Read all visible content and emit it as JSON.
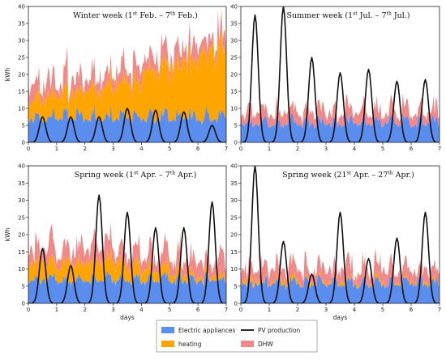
{
  "chart_data": [
    {
      "type": "area",
      "title_parts": [
        "Winter week (1",
        "st",
        " Feb. – 7",
        "th",
        " Feb.)"
      ],
      "ylabel": "kWh",
      "xlabel": "",
      "xlim": [
        0,
        7
      ],
      "ylim": [
        0,
        40
      ],
      "xticks": [
        "0",
        "1",
        "2",
        "3",
        "4",
        "5",
        "6",
        "7"
      ],
      "yticks": [
        "0",
        "5",
        "10",
        "15",
        "20",
        "25",
        "30",
        "35",
        "40"
      ],
      "profile": {
        "appliances_base": 5,
        "appliances_peak": 9,
        "heating_base": [
          6,
          6,
          7,
          7,
          8,
          9,
          10,
          12
        ],
        "dhw_base": 4,
        "heating_trend_end": 22,
        "pv_peaks": [
          7.5,
          7.5,
          7.5,
          10,
          9.5,
          9,
          5
        ]
      }
    },
    {
      "type": "area",
      "title_parts": [
        "Summer week (1",
        "st",
        " Jul. – 7",
        "th",
        " Jul.)"
      ],
      "ylabel": "",
      "xlabel": "",
      "xlim": [
        0,
        7
      ],
      "ylim": [
        0,
        40
      ],
      "xticks": [
        "0",
        "1",
        "2",
        "3",
        "4",
        "5",
        "6",
        "7"
      ],
      "yticks": [
        "0",
        "5",
        "10",
        "15",
        "20",
        "25",
        "30",
        "35",
        "40"
      ],
      "profile": {
        "appliances_base": 4,
        "appliances_peak": 7,
        "heating_base": [
          0,
          0,
          0,
          0,
          0,
          0,
          0,
          0
        ],
        "dhw_base": 3,
        "heating_trend_end": 0,
        "pv_peaks": [
          37.5,
          40,
          25,
          20.5,
          21.5,
          18,
          18.5
        ]
      }
    },
    {
      "type": "area",
      "title_parts": [
        "Spring week (1",
        "st",
        " Apr. – 7",
        "th",
        " Apr.)"
      ],
      "ylabel": "kWh",
      "xlabel": "days",
      "xlim": [
        0,
        7
      ],
      "ylim": [
        0,
        40
      ],
      "xticks": [
        "0",
        "1",
        "2",
        "3",
        "4",
        "5",
        "6",
        "7"
      ],
      "yticks": [
        "0",
        "5",
        "10",
        "15",
        "20",
        "25",
        "30",
        "35",
        "40"
      ],
      "profile": {
        "appliances_base": 5,
        "appliances_peak": 8,
        "heating_base": [
          5,
          5,
          5,
          4,
          3,
          2,
          1,
          1
        ],
        "dhw_base": 4,
        "heating_trend_end": 0,
        "pv_peaks": [
          16,
          11,
          31.5,
          26.5,
          22,
          22,
          29.5
        ]
      }
    },
    {
      "type": "area",
      "title_parts": [
        "Spring week (21",
        "st",
        " Apr. – 27",
        "th",
        " Apr.)"
      ],
      "ylabel": "",
      "xlabel": "days",
      "xlim": [
        0,
        7
      ],
      "ylim": [
        0,
        40
      ],
      "xticks": [
        "0",
        "1",
        "2",
        "3",
        "4",
        "5",
        "6",
        "7"
      ],
      "yticks": [
        "0",
        "5",
        "10",
        "15",
        "20",
        "25",
        "30",
        "35",
        "40"
      ],
      "profile": {
        "appliances_base": 4,
        "appliances_peak": 7,
        "heating_base": [
          0.5,
          0.5,
          0.5,
          0.3,
          0.3,
          0.2,
          0.2,
          0.2
        ],
        "dhw_base": 3.5,
        "heating_trend_end": 0,
        "pv_peaks": [
          40,
          18,
          8.5,
          26.5,
          13,
          19,
          26.5
        ]
      }
    }
  ],
  "legend": {
    "items": [
      {
        "label": "Electric appliances",
        "kind": "patch",
        "color": "#5b8def"
      },
      {
        "label": "PV production",
        "kind": "line",
        "color": "#111111"
      },
      {
        "label": "heating",
        "kind": "patch",
        "color": "#ffa500"
      },
      {
        "label": "DHW",
        "kind": "patch",
        "color": "#f08a8a"
      }
    ]
  },
  "colors": {
    "appliances": "#5b8def",
    "heating": "#ffa500",
    "dhw": "#f08a8a",
    "pv": "#111111"
  }
}
